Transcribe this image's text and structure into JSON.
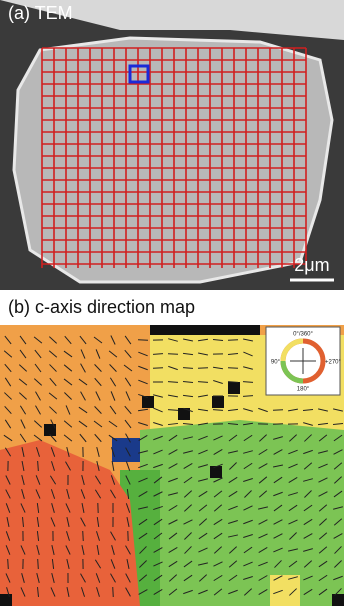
{
  "panel_a": {
    "label": "(a) TEM",
    "scale_bar": "2μm"
  },
  "panel_b": {
    "label": "(b) c-axis direction map",
    "legend": {
      "top": "0°/360°",
      "left": "90°",
      "right": "+270°",
      "bottom": "180°"
    }
  }
}
